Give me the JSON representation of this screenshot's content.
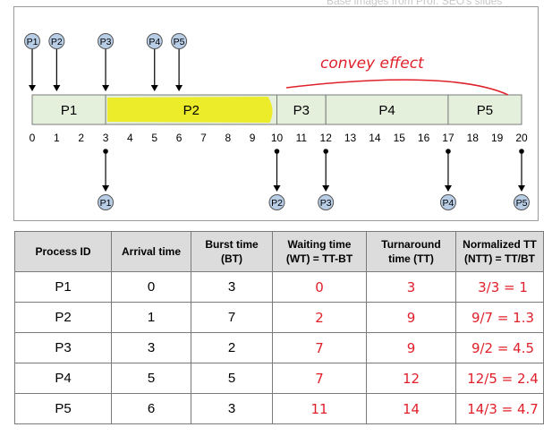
{
  "header_caption": "Base images from Prof. SEO's slides",
  "annotation": "convey effect",
  "colors": {
    "bar_fill": "#e4f0dc",
    "highlight": "#ecec2a",
    "ink_red": "#e0202a",
    "circle_fill": "#b8cde6"
  },
  "gantt": {
    "segments": [
      {
        "label": "P1",
        "start": 0,
        "end": 3
      },
      {
        "label": "P2",
        "start": 3,
        "end": 10,
        "highlighted": true
      },
      {
        "label": "P3",
        "start": 10,
        "end": 12
      },
      {
        "label": "P4",
        "start": 12,
        "end": 17
      },
      {
        "label": "P5",
        "start": 17,
        "end": 20
      }
    ],
    "ticks": [
      "0",
      "1",
      "2",
      "3",
      "4",
      "5",
      "6",
      "7",
      "8",
      "9",
      "10",
      "11",
      "12",
      "13",
      "14",
      "15",
      "16",
      "17",
      "18",
      "19",
      "20"
    ],
    "arrivals": [
      {
        "label": "P1",
        "time": 0
      },
      {
        "label": "P2",
        "time": 1
      },
      {
        "label": "P3",
        "time": 3
      },
      {
        "label": "P4",
        "time": 5
      },
      {
        "label": "P5",
        "time": 6
      }
    ],
    "completions": [
      {
        "label": "P1",
        "time": 3
      },
      {
        "label": "P2",
        "time": 10
      },
      {
        "label": "P3",
        "time": 12
      },
      {
        "label": "P4",
        "time": 17
      },
      {
        "label": "P5",
        "time": 20
      }
    ]
  },
  "table": {
    "headers": [
      "Process ID",
      "Arrival time",
      "Burst time (BT)",
      "Waiting time (WT) = TT-BT",
      "Turnaround time (TT)",
      "Normalized TT (NTT) = TT/BT"
    ],
    "rows": [
      {
        "pid": "P1",
        "arrival": "0",
        "burst": "3",
        "wt": "0",
        "tt": "3",
        "ntt": "3/3 = 1"
      },
      {
        "pid": "P2",
        "arrival": "1",
        "burst": "7",
        "wt": "2",
        "tt": "9",
        "ntt": "9/7 = 1.3"
      },
      {
        "pid": "P3",
        "arrival": "3",
        "burst": "2",
        "wt": "7",
        "tt": "9",
        "ntt": "9/2 = 4.5"
      },
      {
        "pid": "P4",
        "arrival": "5",
        "burst": "5",
        "wt": "7",
        "tt": "12",
        "ntt": "12/5 = 2.4"
      },
      {
        "pid": "P5",
        "arrival": "6",
        "burst": "3",
        "wt": "11",
        "tt": "14",
        "ntt": "14/3 = 4.7"
      }
    ]
  }
}
